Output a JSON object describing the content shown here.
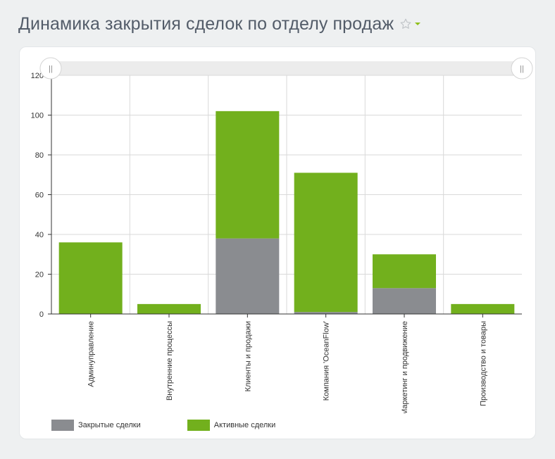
{
  "header": {
    "title": "Динамика закрытия сделок по отделу продаж"
  },
  "colors": {
    "closed": "#8a8c90",
    "active": "#72b01d",
    "grid": "#d9d9d9",
    "scrollbar": "#ececec",
    "title": "#535c69",
    "accent": "#8fbf1a"
  },
  "chart_data": {
    "type": "bar",
    "stacked": true,
    "categories": [
      "Админуправление",
      "Внутренние процессы",
      "Клиенты и продажи",
      "Компания 'OceanFlow'",
      "Маркетинг и продвижение",
      "Производство и товары"
    ],
    "series": [
      {
        "name": "Закрытые сделки",
        "values": [
          0,
          0,
          38,
          1,
          13,
          0
        ]
      },
      {
        "name": "Активные сделки",
        "values": [
          36,
          5,
          64,
          70,
          17,
          5
        ]
      }
    ],
    "ylim": [
      0,
      120
    ],
    "yticks": [
      0,
      20,
      40,
      60,
      80,
      100,
      120
    ],
    "grid": true,
    "legend": "bottom-left"
  },
  "legend": {
    "closed_label": "Закрытые сделки",
    "active_label": "Активные сделки"
  },
  "scrollbar": {
    "handle_symbol": "||"
  },
  "icons": {
    "favorite": "star-outline-icon",
    "menu": "caret-down-icon"
  }
}
